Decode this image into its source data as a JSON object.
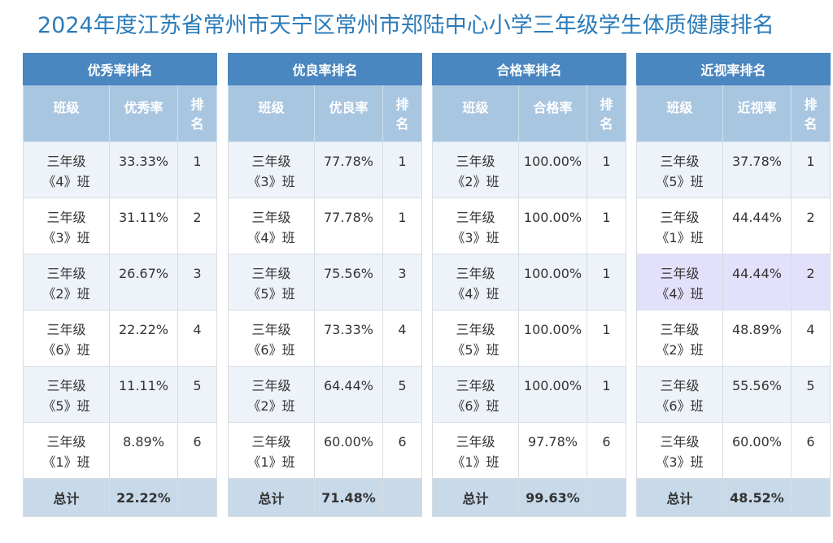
{
  "page_title": "2024年度江苏省常州市天宁区常州市郑陆中心小学三年级学生体质健康排名",
  "panels": [
    {
      "title": "优秀率排名",
      "headers": {
        "class": "班级",
        "rate": "优秀率",
        "rank": "排名"
      },
      "rows": [
        {
          "class_line1": "三年级",
          "class_line2": "《4》班",
          "rate": "33.33%",
          "rank": "1"
        },
        {
          "class_line1": "三年级",
          "class_line2": "《3》班",
          "rate": "31.11%",
          "rank": "2"
        },
        {
          "class_line1": "三年级",
          "class_line2": "《2》班",
          "rate": "26.67%",
          "rank": "3"
        },
        {
          "class_line1": "三年级",
          "class_line2": "《6》班",
          "rate": "22.22%",
          "rank": "4"
        },
        {
          "class_line1": "三年级",
          "class_line2": "《5》班",
          "rate": "11.11%",
          "rank": "5"
        },
        {
          "class_line1": "三年级",
          "class_line2": "《1》班",
          "rate": "8.89%",
          "rank": "6"
        }
      ],
      "total": {
        "label": "总计",
        "rate": "22.22%"
      }
    },
    {
      "title": "优良率排名",
      "headers": {
        "class": "班级",
        "rate": "优良率",
        "rank": "排名"
      },
      "rows": [
        {
          "class_line1": "三年级",
          "class_line2": "《3》班",
          "rate": "77.78%",
          "rank": "1"
        },
        {
          "class_line1": "三年级",
          "class_line2": "《4》班",
          "rate": "77.78%",
          "rank": "1"
        },
        {
          "class_line1": "三年级",
          "class_line2": "《5》班",
          "rate": "75.56%",
          "rank": "3"
        },
        {
          "class_line1": "三年级",
          "class_line2": "《6》班",
          "rate": "73.33%",
          "rank": "4"
        },
        {
          "class_line1": "三年级",
          "class_line2": "《2》班",
          "rate": "64.44%",
          "rank": "5"
        },
        {
          "class_line1": "三年级",
          "class_line2": "《1》班",
          "rate": "60.00%",
          "rank": "6"
        }
      ],
      "total": {
        "label": "总计",
        "rate": "71.48%"
      }
    },
    {
      "title": "合格率排名",
      "headers": {
        "class": "班级",
        "rate": "合格率",
        "rank": "排名"
      },
      "rows": [
        {
          "class_line1": "三年级",
          "class_line2": "《2》班",
          "rate": "100.00%",
          "rank": "1"
        },
        {
          "class_line1": "三年级",
          "class_line2": "《3》班",
          "rate": "100.00%",
          "rank": "1"
        },
        {
          "class_line1": "三年级",
          "class_line2": "《4》班",
          "rate": "100.00%",
          "rank": "1"
        },
        {
          "class_line1": "三年级",
          "class_line2": "《5》班",
          "rate": "100.00%",
          "rank": "1"
        },
        {
          "class_line1": "三年级",
          "class_line2": "《6》班",
          "rate": "100.00%",
          "rank": "1"
        },
        {
          "class_line1": "三年级",
          "class_line2": "《1》班",
          "rate": "97.78%",
          "rank": "6"
        }
      ],
      "total": {
        "label": "总计",
        "rate": "99.63%"
      }
    },
    {
      "title": "近视率排名",
      "headers": {
        "class": "班级",
        "rate": "近视率",
        "rank": "排名"
      },
      "rows": [
        {
          "class_line1": "三年级",
          "class_line2": "《5》班",
          "rate": "37.78%",
          "rank": "1"
        },
        {
          "class_line1": "三年级",
          "class_line2": "《1》班",
          "rate": "44.44%",
          "rank": "2"
        },
        {
          "class_line1": "三年级",
          "class_line2": "《4》班",
          "rate": "44.44%",
          "rank": "2"
        },
        {
          "class_line1": "三年级",
          "class_line2": "《2》班",
          "rate": "48.89%",
          "rank": "4"
        },
        {
          "class_line1": "三年级",
          "class_line2": "《6》班",
          "rate": "55.56%",
          "rank": "5"
        },
        {
          "class_line1": "三年级",
          "class_line2": "《3》班",
          "rate": "60.00%",
          "rank": "6"
        }
      ],
      "total": {
        "label": "总计",
        "rate": "48.52%"
      }
    }
  ],
  "colors": {
    "title_text": "#2b7bb9",
    "panel_header_bg": "#4a86bf",
    "column_header_bg": "#a9c6e1",
    "row_alt_bg": "#eef3f9",
    "highlight_row_bg": "#e3e0fb",
    "total_row_bg": "#c8d9e9"
  }
}
